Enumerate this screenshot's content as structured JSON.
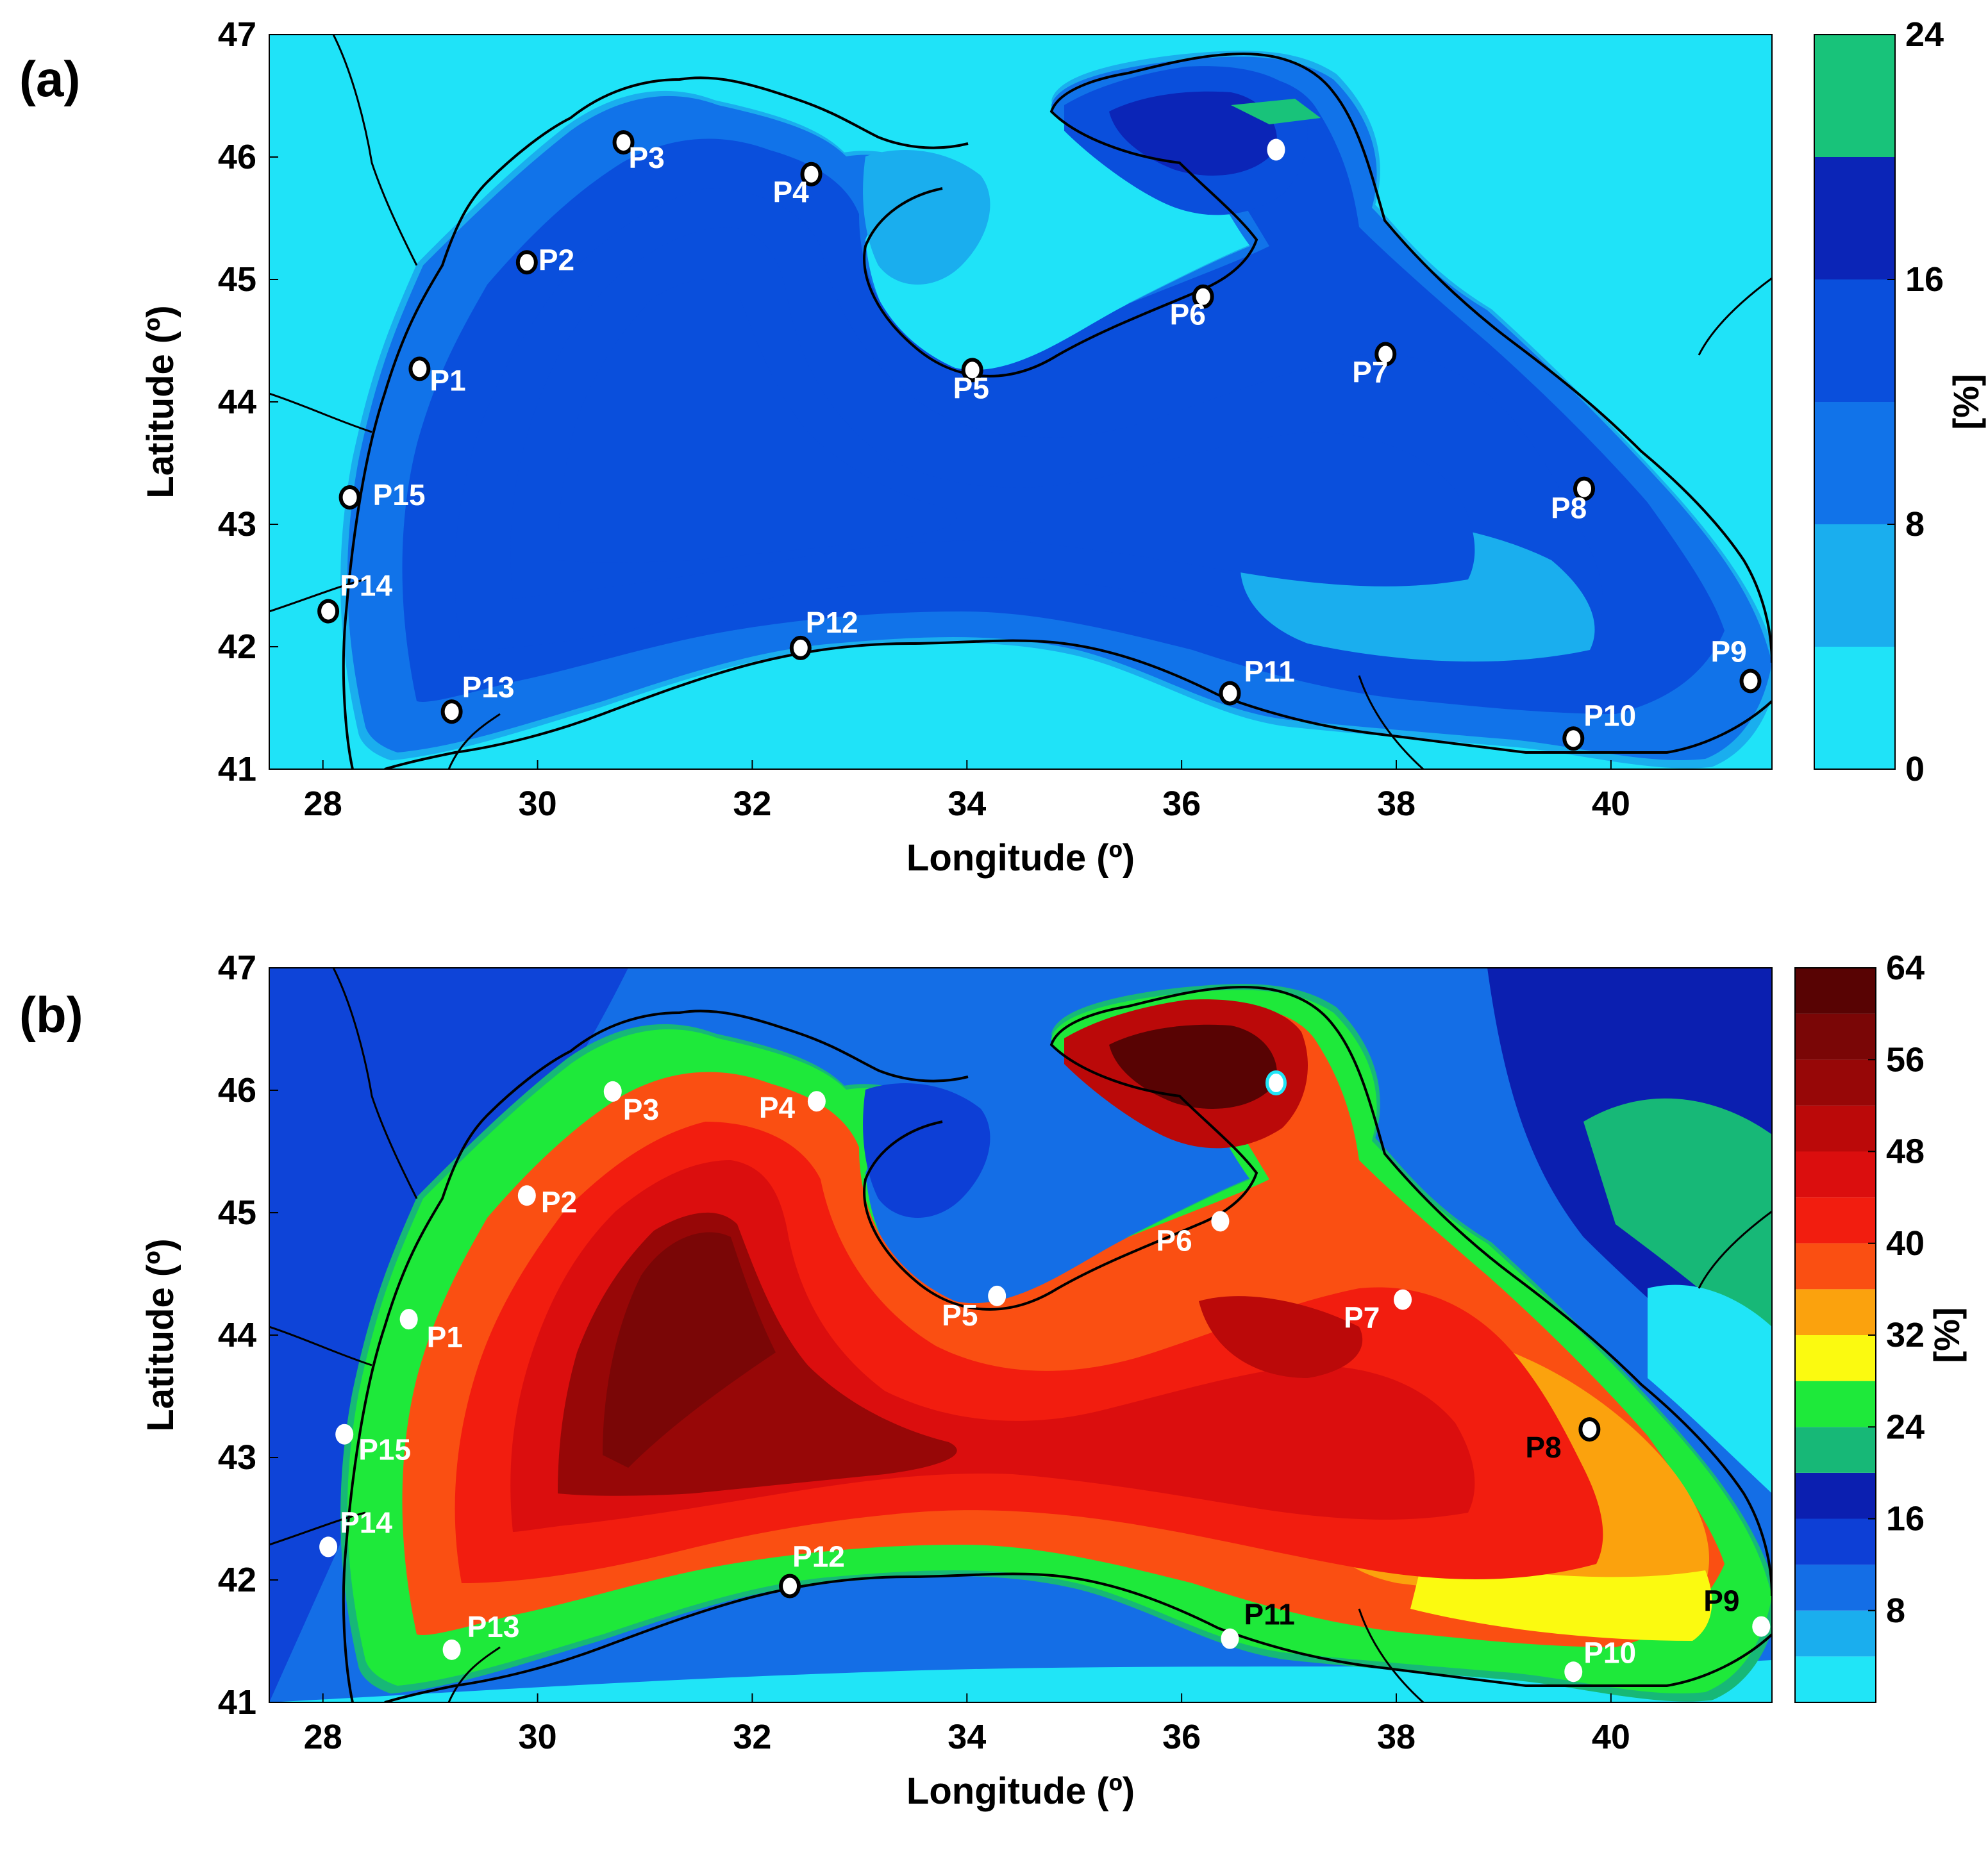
{
  "figure": {
    "panels": [
      {
        "id": "a",
        "label": "(a)",
        "xlabel": "Longitude (º)",
        "ylabel": "Latitude (º)",
        "colorbar_unit": "[%]",
        "x_ticks": [
          28,
          30,
          32,
          34,
          36,
          38,
          40
        ],
        "y_ticks": [
          41,
          42,
          43,
          44,
          45,
          46,
          47
        ],
        "xlim": [
          27.5,
          41.5
        ],
        "ylim": [
          41,
          47
        ],
        "colorbar": {
          "range": [
            0,
            24
          ],
          "ticks": [
            0,
            8,
            16,
            24
          ],
          "levels": [
            {
              "from": 0,
              "to": 4,
              "color": "#1fe3f8"
            },
            {
              "from": 4,
              "to": 8,
              "color": "#1aaeee"
            },
            {
              "from": 8,
              "to": 12,
              "color": "#1173e9"
            },
            {
              "from": 12,
              "to": 16,
              "color": "#0a4fdc"
            },
            {
              "from": 16,
              "to": 20,
              "color": "#0b25b7"
            },
            {
              "from": 20,
              "to": 24,
              "color": "#18c37a"
            }
          ]
        },
        "points": [
          {
            "label": "P1",
            "lon": 28.9,
            "lat": 44.27,
            "marker": "white-black",
            "label_color": "#ffffff",
            "dx": 16,
            "dy": 34
          },
          {
            "label": "P2",
            "lon": 29.9,
            "lat": 45.14,
            "marker": "white-black",
            "label_color": "#ffffff",
            "dx": 18,
            "dy": 12
          },
          {
            "label": "P3",
            "lon": 30.8,
            "lat": 46.12,
            "marker": "white-black",
            "label_color": "#ffffff",
            "dx": 8,
            "dy": 40
          },
          {
            "label": "P4",
            "lon": 32.55,
            "lat": 45.86,
            "marker": "white-black",
            "label_color": "#ffffff",
            "dx": -60,
            "dy": 44
          },
          {
            "label": "P5",
            "lon": 34.05,
            "lat": 44.26,
            "marker": "white-black",
            "label_color": "#ffffff",
            "dx": -30,
            "dy": 44
          },
          {
            "label": "P6",
            "lon": 36.2,
            "lat": 44.86,
            "marker": "white-black",
            "label_color": "#ffffff",
            "dx": -52,
            "dy": 44
          },
          {
            "label": "P7",
            "lon": 37.9,
            "lat": 44.39,
            "marker": "white-black",
            "label_color": "#ffffff",
            "dx": -52,
            "dy": 44
          },
          {
            "label": "P8",
            "lon": 39.75,
            "lat": 43.29,
            "marker": "white-black",
            "label_color": "#ffffff",
            "dx": -52,
            "dy": 46
          },
          {
            "label": "P9",
            "lon": 41.3,
            "lat": 41.72,
            "marker": "white-black",
            "label_color": "#ffffff",
            "dx": -62,
            "dy": -30
          },
          {
            "label": "P10",
            "lon": 39.65,
            "lat": 41.25,
            "marker": "white-black",
            "label_color": "#ffffff",
            "dx": 16,
            "dy": -20
          },
          {
            "label": "P11",
            "lon": 36.45,
            "lat": 41.62,
            "marker": "white-black",
            "label_color": "#ffffff",
            "dx": 22,
            "dy": -18
          },
          {
            "label": "P12",
            "lon": 32.45,
            "lat": 41.99,
            "marker": "white-black",
            "label_color": "#ffffff",
            "dx": 8,
            "dy": -24
          },
          {
            "label": "P13",
            "lon": 29.2,
            "lat": 41.47,
            "marker": "white-black",
            "label_color": "#ffffff",
            "dx": 16,
            "dy": -22
          },
          {
            "label": "P14",
            "lon": 28.05,
            "lat": 42.29,
            "marker": "white-black",
            "label_color": "#ffffff",
            "dx": 18,
            "dy": -24
          },
          {
            "label": "P15",
            "lon": 28.25,
            "lat": 43.22,
            "marker": "white-black",
            "label_color": "#ffffff",
            "dx": 36,
            "dy": 12
          },
          {
            "label": "",
            "lon": 36.88,
            "lat": 46.06,
            "marker": "white",
            "label_color": "#ffffff",
            "dx": 0,
            "dy": 0
          }
        ]
      },
      {
        "id": "b",
        "label": "(b)",
        "xlabel": "Longitude (º)",
        "ylabel": "Latitude (º)",
        "colorbar_unit": "[%]",
        "x_ticks": [
          28,
          30,
          32,
          34,
          36,
          38,
          40
        ],
        "y_ticks": [
          41,
          42,
          43,
          44,
          45,
          46,
          47
        ],
        "xlim": [
          27.5,
          41.5
        ],
        "ylim": [
          41,
          47
        ],
        "colorbar": {
          "range": [
            0,
            64
          ],
          "ticks": [
            8,
            16,
            24,
            32,
            40,
            48,
            56,
            64
          ],
          "levels": [
            {
              "from": 0,
              "to": 4,
              "color": "#20e5f7"
            },
            {
              "from": 4,
              "to": 8,
              "color": "#1aaeee"
            },
            {
              "from": 8,
              "to": 12,
              "color": "#146ee6"
            },
            {
              "from": 12,
              "to": 16,
              "color": "#0d3fd6"
            },
            {
              "from": 16,
              "to": 20,
              "color": "#0b1fb0"
            },
            {
              "from": 20,
              "to": 24,
              "color": "#17b877"
            },
            {
              "from": 24,
              "to": 28,
              "color": "#1ee93a"
            },
            {
              "from": 28,
              "to": 32,
              "color": "#fbfa10"
            },
            {
              "from": 32,
              "to": 36,
              "color": "#fba20d"
            },
            {
              "from": 36,
              "to": 40,
              "color": "#fa4f12"
            },
            {
              "from": 40,
              "to": 44,
              "color": "#f21d0f"
            },
            {
              "from": 44,
              "to": 48,
              "color": "#db0e0e"
            },
            {
              "from": 48,
              "to": 52,
              "color": "#bb0909"
            },
            {
              "from": 52,
              "to": 56,
              "color": "#970707"
            },
            {
              "from": 56,
              "to": 60,
              "color": "#7a0606"
            },
            {
              "from": 60,
              "to": 64,
              "color": "#580303"
            }
          ]
        },
        "points": [
          {
            "label": "P1",
            "lon": 28.8,
            "lat": 44.13,
            "marker": "white",
            "label_color": "#ffffff",
            "dx": 28,
            "dy": 44
          },
          {
            "label": "P2",
            "lon": 29.9,
            "lat": 45.14,
            "marker": "white",
            "label_color": "#ffffff",
            "dx": 22,
            "dy": 26
          },
          {
            "label": "P3",
            "lon": 30.7,
            "lat": 45.99,
            "marker": "white",
            "label_color": "#ffffff",
            "dx": 16,
            "dy": 44
          },
          {
            "label": "P4",
            "lon": 32.6,
            "lat": 45.91,
            "marker": "white",
            "label_color": "#ffffff",
            "dx": -90,
            "dy": 26
          },
          {
            "label": "P5",
            "lon": 34.28,
            "lat": 44.32,
            "marker": "white",
            "label_color": "#ffffff",
            "dx": -86,
            "dy": 46
          },
          {
            "label": "P6",
            "lon": 36.36,
            "lat": 44.93,
            "marker": "white",
            "label_color": "#ffffff",
            "dx": -100,
            "dy": 46
          },
          {
            "label": "P7",
            "lon": 38.06,
            "lat": 44.29,
            "marker": "white",
            "label_color": "#ffffff",
            "dx": -92,
            "dy": 44
          },
          {
            "label": "P8",
            "lon": 39.8,
            "lat": 43.23,
            "marker": "white-black",
            "label_color": "#000000",
            "dx": -100,
            "dy": 44
          },
          {
            "label": "P9",
            "lon": 41.4,
            "lat": 41.62,
            "marker": "white",
            "label_color": "#000000",
            "dx": -90,
            "dy": -24
          },
          {
            "label": "P10",
            "lon": 39.65,
            "lat": 41.25,
            "marker": "white",
            "label_color": "#ffffff",
            "dx": 16,
            "dy": -14
          },
          {
            "label": "P11",
            "lon": 36.45,
            "lat": 41.52,
            "marker": "white",
            "label_color": "#000000",
            "dx": 22,
            "dy": -22
          },
          {
            "label": "P12",
            "lon": 32.35,
            "lat": 41.95,
            "marker": "white-black",
            "label_color": "#ffffff",
            "dx": 4,
            "dy": -30
          },
          {
            "label": "P13",
            "lon": 29.2,
            "lat": 41.43,
            "marker": "white",
            "label_color": "#ffffff",
            "dx": 24,
            "dy": -20
          },
          {
            "label": "P14",
            "lon": 28.05,
            "lat": 42.27,
            "marker": "white",
            "label_color": "#ffffff",
            "dx": 18,
            "dy": -22
          },
          {
            "label": "P15",
            "lon": 28.2,
            "lat": 43.19,
            "marker": "white",
            "label_color": "#ffffff",
            "dx": 22,
            "dy": 40
          },
          {
            "label": "",
            "lon": 36.88,
            "lat": 46.06,
            "marker": "white-cyan",
            "label_color": "#ffffff",
            "dx": 0,
            "dy": 0
          }
        ]
      }
    ]
  }
}
